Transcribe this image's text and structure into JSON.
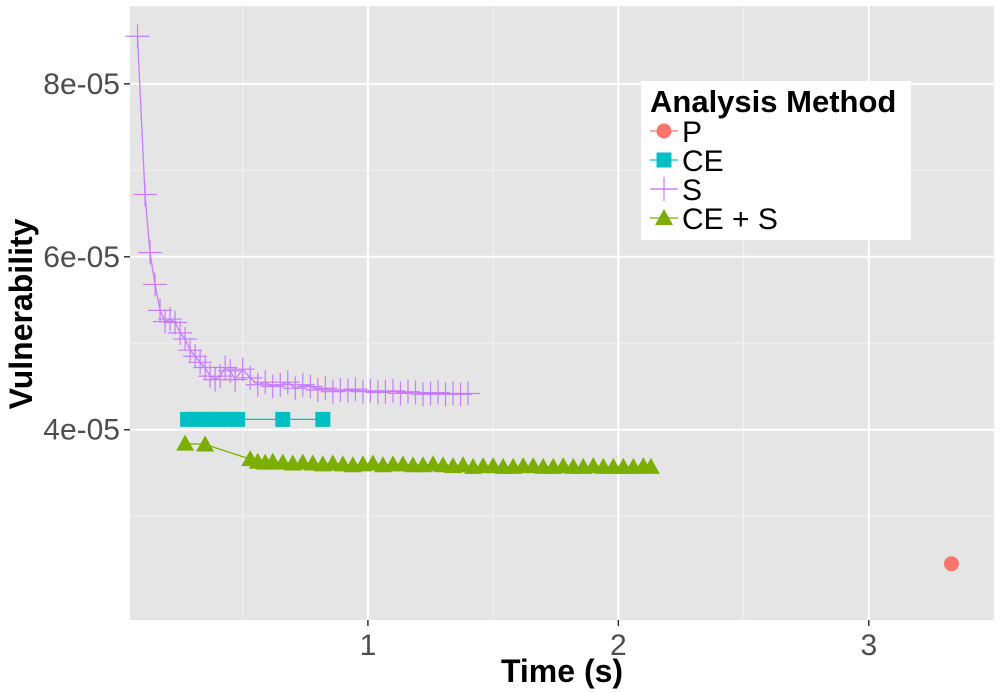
{
  "chart_data": {
    "type": "line",
    "xlabel": "Time (s)",
    "ylabel": "Vulnerability",
    "xlim": [
      0.05,
      3.5
    ],
    "ylim": [
      1.8e-05,
      8.9e-05
    ],
    "x_ticks": [
      1,
      2,
      3
    ],
    "x_tick_labels": [
      "1",
      "2",
      "3"
    ],
    "y_ticks": [
      4e-05,
      6e-05,
      8e-05
    ],
    "y_tick_labels": [
      "4e-05",
      "6e-05",
      "8e-05"
    ],
    "grid": true,
    "panel_background": "#e5e5e5",
    "legend": {
      "title": "Analysis Method",
      "position": "top-right"
    },
    "series": [
      {
        "name": "P",
        "color": "#f8766d",
        "marker": "circle",
        "x": [
          3.33
        ],
        "y": [
          2.45e-05
        ]
      },
      {
        "name": "CE",
        "color": "#00bfc4",
        "marker": "square",
        "x": [
          0.28,
          0.32,
          0.36,
          0.4,
          0.44,
          0.48,
          0.66,
          0.82
        ],
        "y": [
          4.12e-05,
          4.12e-05,
          4.12e-05,
          4.12e-05,
          4.12e-05,
          4.12e-05,
          4.12e-05,
          4.12e-05
        ]
      },
      {
        "name": "S",
        "color": "#c77cff",
        "marker": "plus",
        "x": [
          0.08,
          0.11,
          0.13,
          0.15,
          0.17,
          0.19,
          0.21,
          0.23,
          0.25,
          0.27,
          0.29,
          0.31,
          0.33,
          0.35,
          0.37,
          0.39,
          0.41,
          0.43,
          0.45,
          0.47,
          0.5,
          0.53,
          0.56,
          0.59,
          0.62,
          0.65,
          0.68,
          0.71,
          0.74,
          0.77,
          0.8,
          0.83,
          0.86,
          0.89,
          0.92,
          0.95,
          0.98,
          1.01,
          1.04,
          1.07,
          1.1,
          1.13,
          1.16,
          1.19,
          1.22,
          1.25,
          1.28,
          1.31,
          1.34,
          1.37,
          1.4
        ],
        "y": [
          8.55e-05,
          6.72e-05,
          6.05e-05,
          5.68e-05,
          5.38e-05,
          5.25e-05,
          5.28e-05,
          5.24e-05,
          5.12e-05,
          5.05e-05,
          4.92e-05,
          4.85e-05,
          4.78e-05,
          4.72e-05,
          4.62e-05,
          4.58e-05,
          4.62e-05,
          4.72e-05,
          4.68e-05,
          4.58e-05,
          4.7e-05,
          4.6e-05,
          4.52e-05,
          4.55e-05,
          4.5e-05,
          4.52e-05,
          4.55e-05,
          4.48e-05,
          4.52e-05,
          4.5e-05,
          4.46e-05,
          4.48e-05,
          4.44e-05,
          4.46e-05,
          4.45e-05,
          4.47e-05,
          4.44e-05,
          4.45e-05,
          4.43e-05,
          4.44e-05,
          4.45e-05,
          4.42e-05,
          4.44e-05,
          4.43e-05,
          4.41e-05,
          4.42e-05,
          4.43e-05,
          4.41e-05,
          4.42e-05,
          4.41e-05,
          4.42e-05
        ]
      },
      {
        "name": "CE + S",
        "color": "#7cae00",
        "marker": "triangle",
        "x": [
          0.27,
          0.35,
          0.53,
          0.56,
          0.59,
          0.62,
          0.66,
          0.7,
          0.74,
          0.78,
          0.82,
          0.86,
          0.9,
          0.94,
          0.98,
          1.02,
          1.06,
          1.1,
          1.14,
          1.18,
          1.22,
          1.26,
          1.3,
          1.34,
          1.38,
          1.42,
          1.46,
          1.5,
          1.54,
          1.58,
          1.62,
          1.66,
          1.7,
          1.74,
          1.78,
          1.82,
          1.86,
          1.9,
          1.94,
          1.98,
          2.02,
          2.06,
          2.1,
          2.13
        ],
        "y": [
          3.84e-05,
          3.83e-05,
          3.66e-05,
          3.63e-05,
          3.62e-05,
          3.63e-05,
          3.62e-05,
          3.61e-05,
          3.62e-05,
          3.61e-05,
          3.6e-05,
          3.61e-05,
          3.6e-05,
          3.59e-05,
          3.6e-05,
          3.61e-05,
          3.59e-05,
          3.6e-05,
          3.6e-05,
          3.59e-05,
          3.59e-05,
          3.6e-05,
          3.59e-05,
          3.58e-05,
          3.59e-05,
          3.57e-05,
          3.58e-05,
          3.58e-05,
          3.57e-05,
          3.57e-05,
          3.58e-05,
          3.58e-05,
          3.57e-05,
          3.57e-05,
          3.58e-05,
          3.57e-05,
          3.57e-05,
          3.58e-05,
          3.57e-05,
          3.57e-05,
          3.57e-05,
          3.57e-05,
          3.58e-05,
          3.57e-05
        ]
      }
    ]
  }
}
